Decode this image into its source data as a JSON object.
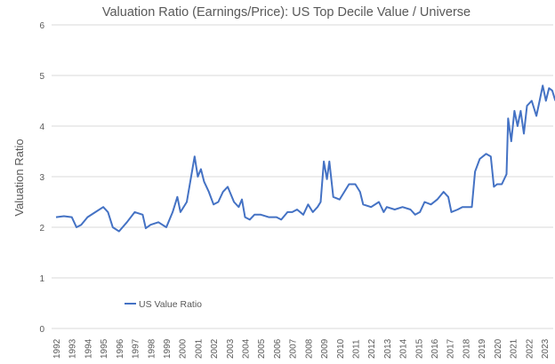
{
  "chart_data": {
    "type": "line",
    "title": "Valuation Ratio (Earnings/Price): US Top Decile Value / Universe",
    "xlabel": "",
    "ylabel": "Valuation Ratio",
    "ylim": [
      0,
      6
    ],
    "yticks": [
      "0",
      "1",
      "2",
      "3",
      "4",
      "5",
      "6"
    ],
    "xticks": [
      "1992",
      "1993",
      "1994",
      "1995",
      "1996",
      "1997",
      "1998",
      "1999",
      "2000",
      "2001",
      "2002",
      "2003",
      "2004",
      "2005",
      "2006",
      "2007",
      "2008",
      "2009",
      "2010",
      "2011",
      "2012",
      "2013",
      "2014",
      "2015",
      "2016",
      "2017",
      "2018",
      "2019",
      "2020",
      "2021",
      "2022",
      "2023"
    ],
    "grid": true,
    "legend_position": "bottom-left",
    "series": [
      {
        "name": "US Value Ratio",
        "color": "#4472C4",
        "x": [
          1992.0,
          1992.5,
          1993.0,
          1993.3,
          1993.6,
          1994.0,
          1994.5,
          1995.0,
          1995.3,
          1995.6,
          1996.0,
          1996.5,
          1997.0,
          1997.5,
          1997.7,
          1998.0,
          1998.5,
          1999.0,
          1999.4,
          1999.7,
          1999.9,
          2000.3,
          2000.8,
          2001.0,
          2001.2,
          2001.4,
          2001.7,
          2002.0,
          2002.3,
          2002.6,
          2002.9,
          2003.3,
          2003.6,
          2003.8,
          2004.0,
          2004.3,
          2004.6,
          2005.0,
          2005.5,
          2006.0,
          2006.3,
          2006.7,
          2007.0,
          2007.3,
          2007.7,
          2008.0,
          2008.3,
          2008.6,
          2008.8,
          2009.0,
          2009.2,
          2009.35,
          2009.6,
          2010.0,
          2010.3,
          2010.6,
          2011.0,
          2011.3,
          2011.5,
          2012.0,
          2012.5,
          2012.8,
          2013.0,
          2013.5,
          2014.0,
          2014.5,
          2014.8,
          2015.1,
          2015.4,
          2015.8,
          2016.2,
          2016.6,
          2016.9,
          2017.1,
          2017.5,
          2017.8,
          2018.2,
          2018.4,
          2018.6,
          2018.9,
          2019.3,
          2019.6,
          2019.8,
          2020.0,
          2020.3,
          2020.6,
          2020.7,
          2020.9,
          2021.1,
          2021.3,
          2021.5,
          2021.7,
          2021.9,
          2022.2,
          2022.5,
          2022.7,
          2022.9,
          2023.1,
          2023.3,
          2023.5,
          2023.7
        ],
        "values": [
          2.2,
          2.22,
          2.2,
          2.0,
          2.05,
          2.2,
          2.3,
          2.4,
          2.3,
          2.0,
          1.92,
          2.1,
          2.3,
          2.25,
          1.98,
          2.05,
          2.1,
          2.0,
          2.3,
          2.6,
          2.3,
          2.5,
          3.4,
          3.0,
          3.15,
          2.9,
          2.7,
          2.45,
          2.5,
          2.7,
          2.8,
          2.5,
          2.4,
          2.55,
          2.2,
          2.15,
          2.25,
          2.25,
          2.2,
          2.2,
          2.15,
          2.3,
          2.3,
          2.35,
          2.25,
          2.45,
          2.3,
          2.4,
          2.5,
          3.3,
          2.95,
          3.3,
          2.6,
          2.55,
          2.7,
          2.85,
          2.85,
          2.7,
          2.45,
          2.4,
          2.5,
          2.3,
          2.4,
          2.35,
          2.4,
          2.35,
          2.25,
          2.3,
          2.5,
          2.45,
          2.55,
          2.7,
          2.6,
          2.3,
          2.35,
          2.4,
          2.4,
          2.4,
          3.1,
          3.35,
          3.45,
          3.4,
          2.8,
          2.85,
          2.85,
          3.05,
          4.15,
          3.7,
          4.3,
          4.0,
          4.3,
          3.85,
          4.4,
          4.5,
          4.2,
          4.5,
          4.8,
          4.5,
          4.75,
          4.7,
          4.5
        ]
      }
    ]
  }
}
